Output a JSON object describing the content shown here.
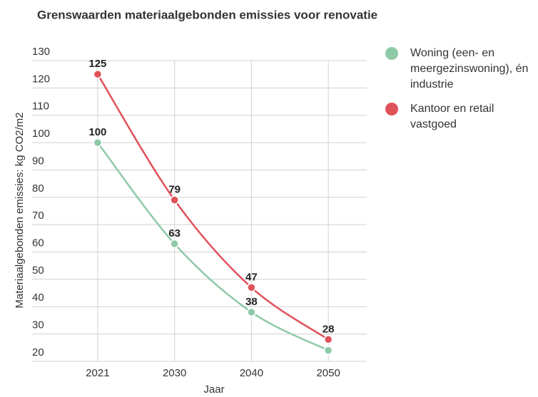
{
  "chart_data": {
    "type": "line",
    "title": "Grenswaarden materiaalgebonden emissies voor renovatie",
    "x_label": "Jaar",
    "y_label": "Materiaalgebonden emissies: kg CO2/m2",
    "categories": [
      "2021",
      "2030",
      "2040",
      "2050"
    ],
    "series": [
      {
        "name": "Woning (een- en meergezinswoning), én industrie",
        "color": "#8fc9a8",
        "values": [
          100,
          63,
          38,
          24
        ],
        "value_labels": [
          "100",
          "63",
          "38",
          null
        ]
      },
      {
        "name": "Kantoor en retail vastgoed",
        "color": "#e0515a",
        "values": [
          125,
          79,
          47,
          28
        ]
      }
    ],
    "ylim": [
      20,
      130
    ],
    "yticks": [
      20,
      30,
      40,
      50,
      60,
      70,
      80,
      90,
      100,
      110,
      120,
      130
    ],
    "grid": true
  }
}
